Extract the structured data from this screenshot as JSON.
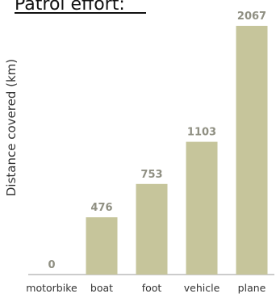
{
  "chart_data": {
    "type": "bar",
    "title": "Patrol effort:",
    "xlabel": "",
    "ylabel": "Distance covered (km)",
    "categories": [
      "motorbike",
      "boat",
      "foot",
      "vehicle",
      "plane"
    ],
    "values": [
      0,
      476,
      753,
      1103,
      2067
    ],
    "ylim": [
      0,
      2067
    ],
    "grid": false,
    "legend": "none",
    "colors": {
      "bar": "#c6c59b",
      "value_label": "#8f8f82",
      "axis_line": "#9a9a9a",
      "text": "#333333"
    }
  }
}
